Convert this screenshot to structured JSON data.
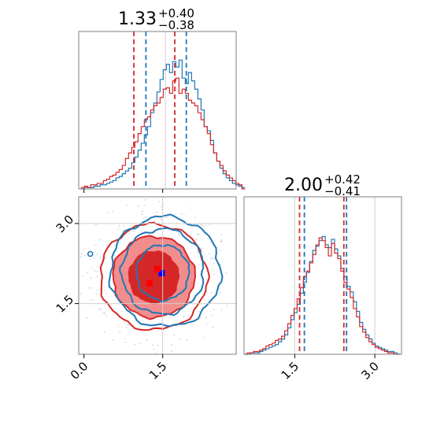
{
  "colors": {
    "red": "#d62728",
    "blue": "#1f77b4",
    "red_light": "#f28d8d",
    "grid": "#cfcfcf",
    "spine": "#7f7f7f"
  },
  "chart_data": {
    "type": "corner",
    "parameters": [
      {
        "title_value": "1.33",
        "title_plus": "+0.40",
        "title_minus": "−0.38",
        "x_range": [
          -0.1,
          2.9
        ],
        "quantiles_red": [
          0.95,
          1.33,
          1.73
        ],
        "quantiles_blue": [
          1.18,
          1.95
        ],
        "median_blue": 1.55,
        "ticks": [
          "0.0",
          "1.5"
        ],
        "tick_values": [
          0.0,
          1.5
        ]
      },
      {
        "title_value": "2.00",
        "title_plus": "+0.42",
        "title_minus": "−0.41",
        "x_range": [
          0.55,
          3.5
        ],
        "quantiles_red": [
          1.59,
          2.0,
          2.42
        ],
        "quantiles_blue": [
          1.68,
          2.47
        ],
        "median_blue": 2.05,
        "ticks": [
          "1.5",
          "3.0"
        ],
        "tick_values": [
          1.5,
          3.0
        ]
      }
    ],
    "hist1": {
      "x_start": -0.05,
      "bin_width": 0.06,
      "red": [
        0.01,
        0.02,
        0.01,
        0.03,
        0.03,
        0.04,
        0.04,
        0.06,
        0.07,
        0.09,
        0.1,
        0.12,
        0.14,
        0.17,
        0.22,
        0.26,
        0.3,
        0.34,
        0.4,
        0.45,
        0.5,
        0.52,
        0.57,
        0.6,
        0.62,
        0.66,
        0.72,
        0.73,
        0.69,
        0.78,
        0.8,
        0.69,
        0.72,
        0.69,
        0.64,
        0.62,
        0.6,
        0.55,
        0.5,
        0.45,
        0.4,
        0.32,
        0.26,
        0.2,
        0.17,
        0.13,
        0.1,
        0.08,
        0.06,
        0.04,
        0.03,
        0
      ],
      "blue": [
        0,
        0.01,
        0.01,
        0.01,
        0.02,
        0.02,
        0.03,
        0.03,
        0.04,
        0.05,
        0.06,
        0.08,
        0.09,
        0.11,
        0.13,
        0.15,
        0.19,
        0.23,
        0.28,
        0.33,
        0.39,
        0.45,
        0.55,
        0.62,
        0.7,
        0.79,
        0.86,
        0.9,
        0.84,
        0.92,
        0.88,
        0.93,
        0.8,
        0.76,
        0.84,
        0.78,
        0.72,
        0.65,
        0.57,
        0.45,
        0.42,
        0.35,
        0.26,
        0.2,
        0.15,
        0.11,
        0.08,
        0.06,
        0.04,
        0.03,
        0.02,
        0.01
      ]
    },
    "hist2": {
      "x_start": 0.55,
      "bin_width": 0.0585,
      "red": [
        0.0,
        0.01,
        0.01,
        0.02,
        0.02,
        0.03,
        0.04,
        0.06,
        0.07,
        0.08,
        0.1,
        0.11,
        0.13,
        0.17,
        0.22,
        0.28,
        0.33,
        0.4,
        0.48,
        0.56,
        0.6,
        0.66,
        0.72,
        0.79,
        0.84,
        0.82,
        0.77,
        0.71,
        0.8,
        0.73,
        0.69,
        0.6,
        0.52,
        0.47,
        0.41,
        0.33,
        0.27,
        0.2,
        0.16,
        0.12,
        0.09,
        0.07,
        0.05,
        0.04,
        0.03,
        0.02,
        0.01,
        0.01,
        0.0,
        0.0
      ],
      "blue": [
        0.0,
        0.0,
        0.01,
        0.01,
        0.01,
        0.02,
        0.03,
        0.04,
        0.05,
        0.06,
        0.07,
        0.09,
        0.11,
        0.14,
        0.19,
        0.25,
        0.3,
        0.36,
        0.44,
        0.52,
        0.59,
        0.67,
        0.75,
        0.78,
        0.82,
        0.85,
        0.79,
        0.77,
        0.83,
        0.76,
        0.71,
        0.62,
        0.56,
        0.49,
        0.45,
        0.38,
        0.31,
        0.23,
        0.18,
        0.14,
        0.11,
        0.08,
        0.06,
        0.05,
        0.04,
        0.03,
        0.02,
        0.02,
        0.01,
        0.0
      ]
    },
    "joint": {
      "x_range": [
        -0.1,
        2.9
      ],
      "y_range": [
        0.55,
        3.5
      ],
      "center_red": [
        1.33,
        2.0
      ],
      "red_levels": [
        {
          "rx": 0.47,
          "ry": 0.48,
          "fill": "#d62728"
        },
        {
          "rx": 0.78,
          "ry": 0.76,
          "fill": "#f28d8d"
        },
        {
          "rx": 1.02,
          "ry": 0.99,
          "fill": "none"
        }
      ],
      "blue_levels": [
        {
          "cx": 1.5,
          "cy": 2.08,
          "rx": 0.5,
          "ry": 0.52
        },
        {
          "cx": 1.5,
          "cy": 2.1,
          "rx": 0.78,
          "ry": 0.8
        },
        {
          "cx": 1.55,
          "cy": 2.1,
          "rx": 1.05,
          "ry": 1.03
        }
      ],
      "markers": [
        {
          "x": 1.48,
          "y": 2.07,
          "color": "blue"
        },
        {
          "x": 1.4,
          "y": 2.15,
          "color": "red"
        },
        {
          "x": 1.25,
          "y": 1.88,
          "color": "red"
        }
      ],
      "xticks": [
        "0.0",
        "1.5"
      ],
      "xtick_values": [
        0.0,
        1.5
      ],
      "yticks": [
        "1.5",
        "3.0"
      ],
      "ytick_values": [
        1.5,
        3.0
      ]
    }
  }
}
